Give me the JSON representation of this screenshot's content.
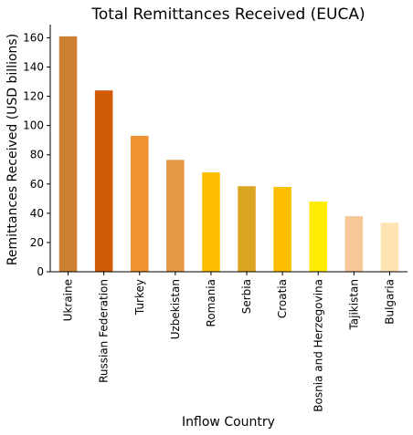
{
  "chart_data": {
    "type": "bar",
    "title": "Total Remittances Received (EUCA)",
    "xlabel": "Inflow Country",
    "ylabel": "Remittances Received (USD billions)",
    "categories": [
      "Ukraine",
      "Russian Federation",
      "Turkey",
      "Uzbekistan",
      "Romania",
      "Serbia",
      "Croatia",
      "Bosnia and Herzegovina",
      "Tajikistan",
      "Bulgaria"
    ],
    "values": [
      161,
      124,
      93,
      76.5,
      68,
      58.5,
      58,
      48,
      38,
      33.5
    ],
    "colors": [
      "#cd8032",
      "#d25b07",
      "#ef9330",
      "#e69743",
      "#fdbf00",
      "#daa521",
      "#fdbf00",
      "#ffec00",
      "#f6c797",
      "#fee3b3"
    ],
    "ylim": [
      0,
      169
    ],
    "yticks": [
      0,
      20,
      40,
      60,
      80,
      100,
      120,
      140,
      160
    ],
    "grid": false,
    "legend": "none"
  }
}
